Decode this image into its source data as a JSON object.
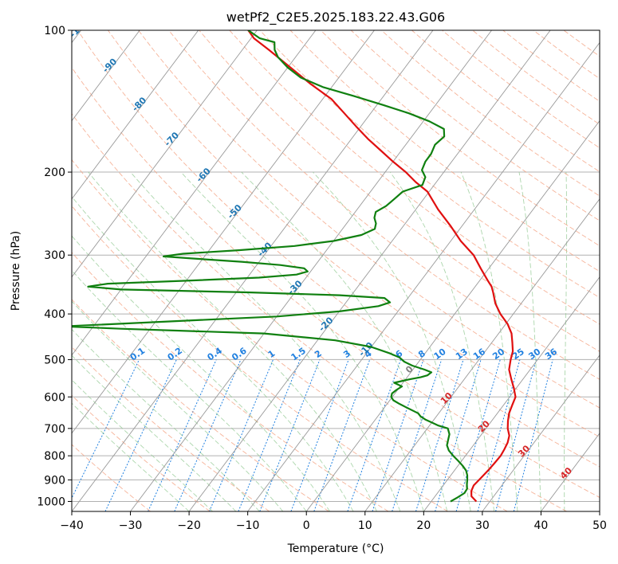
{
  "chart_data": {
    "type": "skew-t",
    "title": "wetPf2_C2E5.2025.183.22.43.G06",
    "xlabel": "Temperature (°C)",
    "ylabel": "Pressure (hPa)",
    "xlim": [
      -40,
      50
    ],
    "ylim": [
      1050,
      100
    ],
    "x_ticks": [
      "−40",
      "−30",
      "−20",
      "−10",
      "0",
      "10",
      "20",
      "30",
      "40",
      "50"
    ],
    "y_ticks": [
      "100",
      "200",
      "300",
      "400",
      "500",
      "600",
      "700",
      "800",
      "900",
      "1000"
    ],
    "y_tick_values": [
      100,
      200,
      300,
      400,
      500,
      600,
      700,
      800,
      900,
      1000
    ],
    "skew": 0.75,
    "grid": true,
    "series": [
      {
        "role": "temperature",
        "color": "#e01010",
        "points": [
          [
            1000,
            27.7
          ],
          [
            975,
            26.2
          ],
          [
            950,
            25.5
          ],
          [
            925,
            25.2
          ],
          [
            900,
            25.4
          ],
          [
            875,
            25.6
          ],
          [
            850,
            25.8
          ],
          [
            825,
            25.9
          ],
          [
            800,
            26.0
          ],
          [
            775,
            25.8
          ],
          [
            750,
            25.5
          ],
          [
            725,
            24.9
          ],
          [
            700,
            23.7
          ],
          [
            675,
            22.8
          ],
          [
            650,
            22.0
          ],
          [
            625,
            21.5
          ],
          [
            600,
            21.0
          ],
          [
            575,
            19.6
          ],
          [
            550,
            18.0
          ],
          [
            525,
            16.4
          ],
          [
            500,
            15.4
          ],
          [
            480,
            14.7
          ],
          [
            460,
            13.5
          ],
          [
            440,
            12.2
          ],
          [
            420,
            10.3
          ],
          [
            400,
            7.8
          ],
          [
            380,
            5.6
          ],
          [
            360,
            3.8
          ],
          [
            350,
            2.8
          ],
          [
            340,
            1.4
          ],
          [
            320,
            -1.4
          ],
          [
            300,
            -4.3
          ],
          [
            280,
            -8.3
          ],
          [
            260,
            -12.0
          ],
          [
            240,
            -16.2
          ],
          [
            220,
            -20.3
          ],
          [
            210,
            -23.5
          ],
          [
            200,
            -26.5
          ],
          [
            190,
            -30.0
          ],
          [
            180,
            -33.5
          ],
          [
            170,
            -37.2
          ],
          [
            160,
            -40.8
          ],
          [
            150,
            -44.5
          ],
          [
            140,
            -48.5
          ],
          [
            130,
            -54.0
          ],
          [
            120,
            -59.5
          ],
          [
            110,
            -65.5
          ],
          [
            104,
            -69.5
          ],
          [
            100,
            -71.5
          ]
        ]
      },
      {
        "role": "dewpoint",
        "color": "#108010",
        "points": [
          [
            1000,
            23.3
          ],
          [
            980,
            24.0
          ],
          [
            960,
            24.6
          ],
          [
            940,
            24.5
          ],
          [
            920,
            23.9
          ],
          [
            900,
            23.4
          ],
          [
            880,
            22.8
          ],
          [
            860,
            22.0
          ],
          [
            840,
            20.8
          ],
          [
            820,
            19.4
          ],
          [
            800,
            17.9
          ],
          [
            780,
            16.5
          ],
          [
            760,
            15.5
          ],
          [
            740,
            15.0
          ],
          [
            720,
            14.5
          ],
          [
            700,
            13.5
          ],
          [
            690,
            11.5
          ],
          [
            680,
            10.0
          ],
          [
            670,
            8.5
          ],
          [
            660,
            7.3
          ],
          [
            650,
            6.5
          ],
          [
            640,
            5.0
          ],
          [
            630,
            3.5
          ],
          [
            620,
            2.0
          ],
          [
            610,
            0.6
          ],
          [
            600,
            -0.2
          ],
          [
            590,
            -0.5
          ],
          [
            580,
            -0.2
          ],
          [
            570,
            0.3
          ],
          [
            560,
            -1.5
          ],
          [
            550,
            0.8
          ],
          [
            545,
            2.3
          ],
          [
            540,
            3.2
          ],
          [
            532,
            3.5
          ],
          [
            525,
            2.0
          ],
          [
            515,
            -0.6
          ],
          [
            505,
            -2.5
          ],
          [
            495,
            -3.8
          ],
          [
            485,
            -6.0
          ],
          [
            470,
            -10.0
          ],
          [
            455,
            -17.0
          ],
          [
            440,
            -30.0
          ],
          [
            430,
            -55.0
          ],
          [
            425,
            -65.0
          ],
          [
            415,
            -48.0
          ],
          [
            405,
            -30.0
          ],
          [
            395,
            -20.0
          ],
          [
            385,
            -14.0
          ],
          [
            378,
            -12.5
          ],
          [
            370,
            -14.0
          ],
          [
            365,
            -22.0
          ],
          [
            360,
            -38.0
          ],
          [
            355,
            -60.0
          ],
          [
            350,
            -66.0
          ],
          [
            345,
            -63.0
          ],
          [
            340,
            -50.0
          ],
          [
            335,
            -38.0
          ],
          [
            330,
            -32.0
          ],
          [
            325,
            -30.5
          ],
          [
            320,
            -31.5
          ],
          [
            315,
            -36.0
          ],
          [
            310,
            -43.0
          ],
          [
            305,
            -52.0
          ],
          [
            302,
            -57.0
          ],
          [
            298,
            -54.0
          ],
          [
            293,
            -45.0
          ],
          [
            287,
            -36.0
          ],
          [
            280,
            -30.0
          ],
          [
            272,
            -26.0
          ],
          [
            264,
            -24.5
          ],
          [
            257,
            -25.0
          ],
          [
            250,
            -26.0
          ],
          [
            243,
            -26.5
          ],
          [
            236,
            -25.5
          ],
          [
            228,
            -25.0
          ],
          [
            220,
            -24.5
          ],
          [
            213,
            -22.0
          ],
          [
            205,
            -22.5
          ],
          [
            198,
            -24.0
          ],
          [
            190,
            -24.5
          ],
          [
            183,
            -24.5
          ],
          [
            175,
            -25.0
          ],
          [
            168,
            -24.5
          ],
          [
            162,
            -25.5
          ],
          [
            156,
            -29.0
          ],
          [
            150,
            -33.5
          ],
          [
            144,
            -39.0
          ],
          [
            138,
            -45.0
          ],
          [
            132,
            -51.5
          ],
          [
            126,
            -56.5
          ],
          [
            120,
            -60.0
          ],
          [
            114,
            -63.0
          ],
          [
            110,
            -64.5
          ],
          [
            106,
            -65.5
          ],
          [
            104,
            -68.5
          ],
          [
            100,
            -71.5
          ]
        ]
      }
    ],
    "dry_adiabat_labels": [
      "-100",
      "-90",
      "-80",
      "-70",
      "-60",
      "-50",
      "-40",
      "-30",
      "-20",
      "-10",
      "0",
      "10",
      "20",
      "30",
      "40"
    ],
    "dry_adiabat_label_values": [
      -100,
      -90,
      -80,
      -70,
      -60,
      -50,
      -40,
      -30,
      -20,
      -10,
      0,
      10,
      20,
      30,
      40
    ],
    "mixing_ratio_labels": [
      "0.1",
      "0.2",
      "0.4",
      "0.6",
      "1",
      "1.5",
      "2",
      "3",
      "4",
      "6",
      "8",
      "10",
      "13",
      "16",
      "20",
      "25",
      "30",
      "36"
    ],
    "mixing_ratio_values": [
      0.1,
      0.2,
      0.4,
      0.6,
      1,
      1.5,
      2,
      3,
      4,
      6,
      8,
      10,
      13,
      16,
      20,
      25,
      30,
      36
    ],
    "colors": {
      "temperature": "#e01010",
      "dewpoint": "#108010",
      "isotherm": "#999999",
      "dry_adiabat": "#f4a080",
      "moist_adiabat": "#90c890",
      "mixing_ratio": "#2080e0",
      "label_blue": "#1f77b4",
      "label_red": "#d62728",
      "label_gray": "#7f7f7f"
    }
  }
}
